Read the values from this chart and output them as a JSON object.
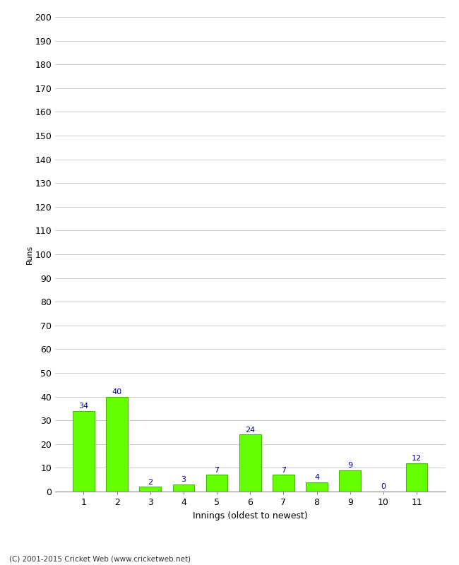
{
  "categories": [
    "1",
    "2",
    "3",
    "4",
    "5",
    "6",
    "7",
    "8",
    "9",
    "10",
    "11"
  ],
  "values": [
    34,
    40,
    2,
    3,
    7,
    24,
    7,
    4,
    9,
    0,
    12
  ],
  "bar_color": "#66ff00",
  "bar_edge_color": "#44bb00",
  "label_color": "#000099",
  "ylabel": "Runs",
  "xlabel": "Innings (oldest to newest)",
  "ylim": [
    0,
    200
  ],
  "yticks": [
    0,
    10,
    20,
    30,
    40,
    50,
    60,
    70,
    80,
    90,
    100,
    110,
    120,
    130,
    140,
    150,
    160,
    170,
    180,
    190,
    200
  ],
  "footer": "(C) 2001-2015 Cricket Web (www.cricketweb.net)",
  "background_color": "#ffffff",
  "grid_color": "#cccccc"
}
